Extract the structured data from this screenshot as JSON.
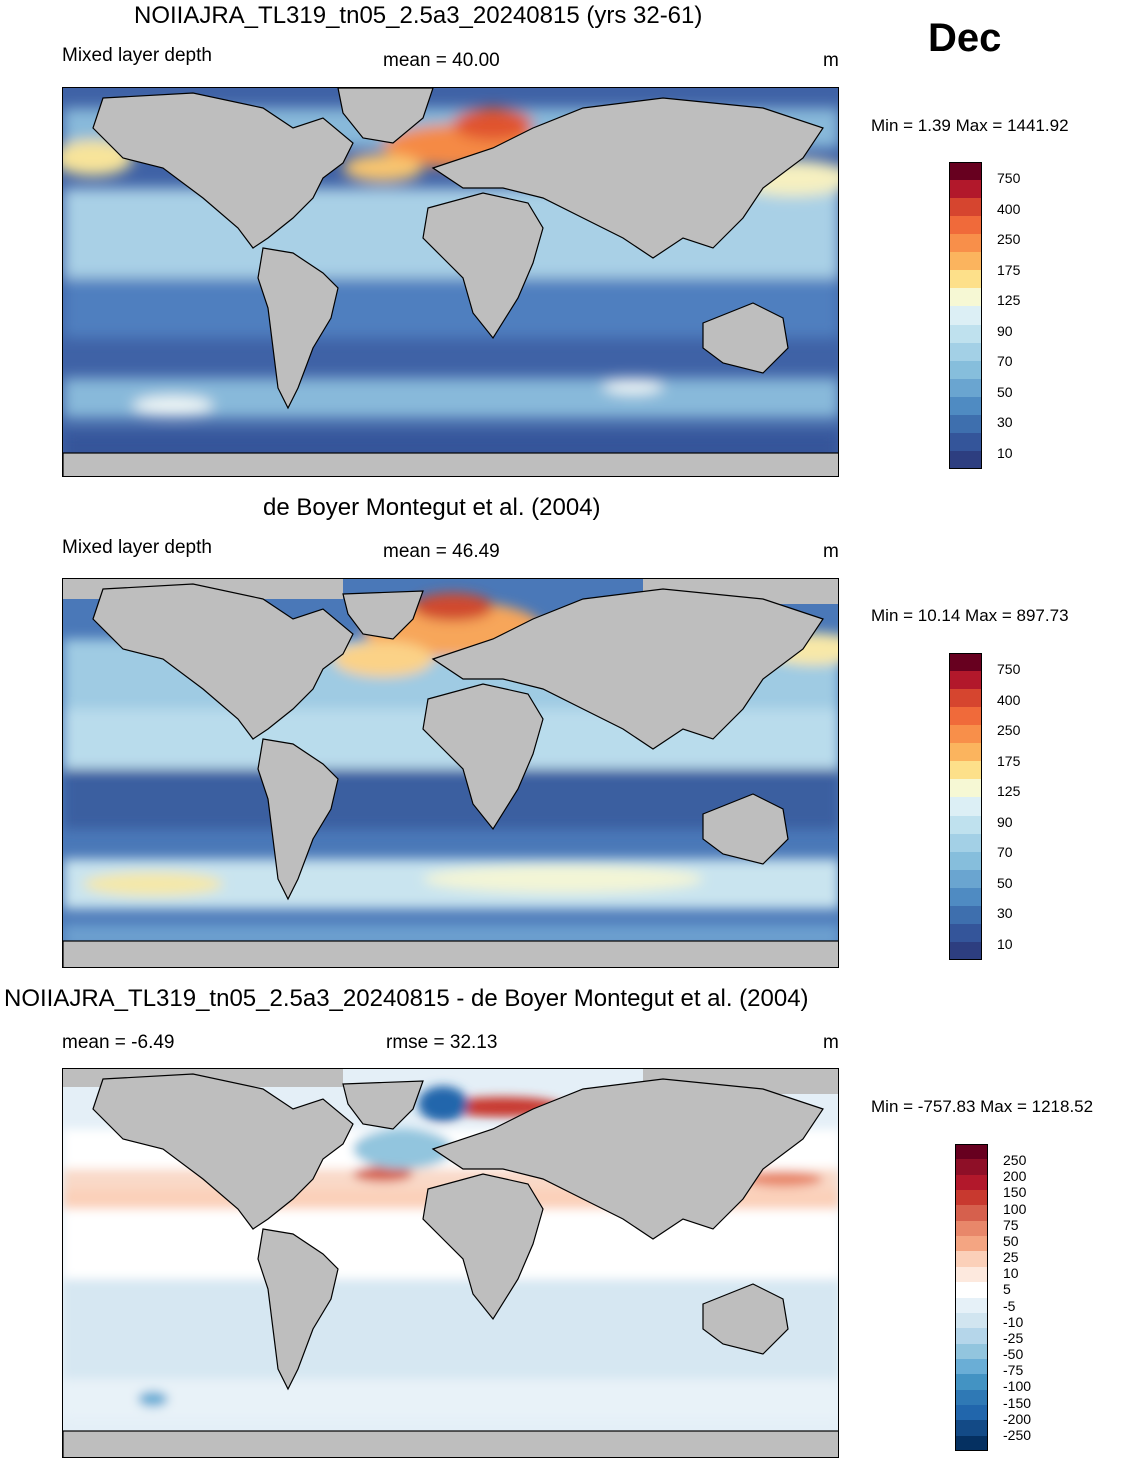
{
  "month": "Dec",
  "units": "m",
  "panels": [
    {
      "title": "NOIIAJRA_TL319_tn05_2.5a3_20240815 (yrs 32-61)",
      "left_label": "Mixed layer depth",
      "center_label": "mean =  40.00",
      "right_label": "m",
      "minmax": "Min =   1.39 Max = 1441.92",
      "colorbar": {
        "labels": [
          "750",
          "400",
          "250",
          "175",
          "125",
          "90",
          "70",
          "50",
          "30",
          "10"
        ],
        "colors": [
          "#67001f",
          "#b2182b",
          "#d6452f",
          "#f06a3a",
          "#f88f4a",
          "#fbb45e",
          "#fde08a",
          "#f6f8d4",
          "#dcefF5",
          "#bfe1ee",
          "#a3d0e6",
          "#86bedc",
          "#6aa5d0",
          "#4f8bc2",
          "#3e6fae",
          "#34559a",
          "#2d3e80"
        ]
      }
    },
    {
      "title": "de Boyer Montegut et al. (2004)",
      "left_label": "Mixed layer depth",
      "center_label": "mean =  46.49",
      "right_label": "m",
      "minmax": "Min =  10.14 Max = 897.73",
      "colorbar": {
        "labels": [
          "750",
          "400",
          "250",
          "175",
          "125",
          "90",
          "70",
          "50",
          "30",
          "10"
        ],
        "colors": [
          "#67001f",
          "#b2182b",
          "#d6452f",
          "#f06a3a",
          "#f88f4a",
          "#fbb45e",
          "#fde08a",
          "#f6f8d4",
          "#dcefF5",
          "#bfe1ee",
          "#a3d0e6",
          "#86bedc",
          "#6aa5d0",
          "#4f8bc2",
          "#3e6fae",
          "#34559a",
          "#2d3e80"
        ]
      }
    },
    {
      "title": "NOIIAJRA_TL319_tn05_2.5a3_20240815 - de Boyer Montegut et al. (2004)",
      "left_label": "mean =  -6.49",
      "center_label": "rmse =  32.13",
      "right_label": "m",
      "minmax": "Min = -757.83 Max = 1218.52",
      "colorbar": {
        "labels": [
          "250",
          "200",
          "150",
          "100",
          "75",
          "50",
          "25",
          "10",
          "5",
          "-5",
          "-10",
          "-25",
          "-50",
          "-75",
          "-100",
          "-150",
          "-200",
          "-250"
        ],
        "colors": [
          "#67001f",
          "#8e0f27",
          "#b2182b",
          "#c8392f",
          "#d6604d",
          "#e8876a",
          "#f4a582",
          "#fbd0b9",
          "#fde9de",
          "#ffffff",
          "#e6f1f8",
          "#d1e5f0",
          "#b5d6ea",
          "#92c5de",
          "#6aaed6",
          "#4393c3",
          "#2f79b5",
          "#2166ac",
          "#134a86",
          "#053061"
        ]
      }
    }
  ]
}
